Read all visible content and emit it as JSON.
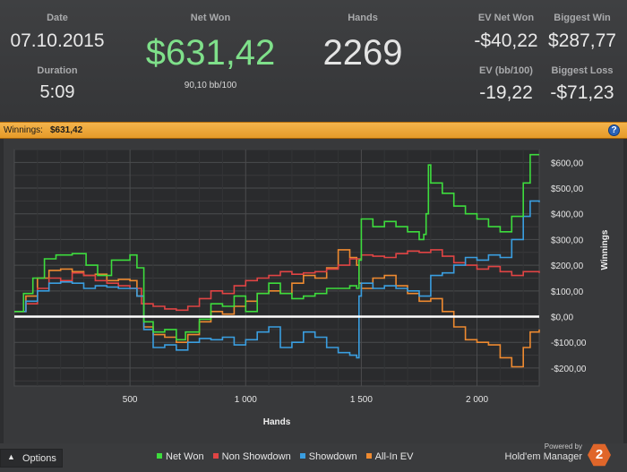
{
  "summary": {
    "date_label": "Date",
    "date_value": "07.10.2015",
    "duration_label": "Duration",
    "duration_value": "5:09",
    "net_won_label": "Net Won",
    "net_won_value": "$631,42",
    "net_won_sub": "90,10 bb/100",
    "hands_label": "Hands",
    "hands_value": "2269",
    "ev_net_won_label": "EV Net Won",
    "ev_net_won_value": "-$40,22",
    "ev_bb100_label": "EV (bb/100)",
    "ev_bb100_value": "-19,22",
    "biggest_win_label": "Biggest Win",
    "biggest_win_value": "$287,77",
    "biggest_loss_label": "Biggest Loss",
    "biggest_loss_value": "-$71,23"
  },
  "title_bar": {
    "label": "Winnings:",
    "amount": "$631,42",
    "help_icon": "question-icon"
  },
  "footer": {
    "options_label": "Options",
    "options_icon": "chevron-up-icon",
    "powered_by": "Powered by",
    "brand_name": "Hold'em Manager",
    "brand_logo_text": "2"
  },
  "chart_data": {
    "type": "line",
    "xlabel": "Hands",
    "ylabel": "Winnings",
    "xlim": [
      0,
      2269
    ],
    "ylim": [
      -270,
      650
    ],
    "x_ticks": [
      500,
      1000,
      1500,
      2000
    ],
    "x_tick_labels": [
      "500",
      "1 000",
      "1 500",
      "2 000"
    ],
    "y_ticks": [
      600,
      500,
      400,
      300,
      200,
      100,
      0,
      -100,
      -200
    ],
    "y_tick_labels": [
      "$600,00",
      "$500,00",
      "$400,00",
      "$300,00",
      "$200,00",
      "$100,00",
      "$0,00",
      "-$100,00",
      "-$200,00"
    ],
    "grid": true,
    "legend_position": "bottom",
    "series": [
      {
        "name": "Net Won",
        "color": "#3ddc3d",
        "points": [
          [
            0,
            20
          ],
          [
            40,
            90
          ],
          [
            80,
            150
          ],
          [
            130,
            225
          ],
          [
            180,
            240
          ],
          [
            250,
            245
          ],
          [
            310,
            200
          ],
          [
            360,
            160
          ],
          [
            420,
            220
          ],
          [
            500,
            240
          ],
          [
            530,
            190
          ],
          [
            560,
            -20
          ],
          [
            600,
            -60
          ],
          [
            650,
            -50
          ],
          [
            700,
            -90
          ],
          [
            740,
            -60
          ],
          [
            800,
            -10
          ],
          [
            850,
            50
          ],
          [
            900,
            40
          ],
          [
            950,
            80
          ],
          [
            1000,
            20
          ],
          [
            1050,
            90
          ],
          [
            1100,
            130
          ],
          [
            1150,
            90
          ],
          [
            1200,
            70
          ],
          [
            1250,
            80
          ],
          [
            1300,
            90
          ],
          [
            1350,
            110
          ],
          [
            1400,
            110
          ],
          [
            1450,
            120
          ],
          [
            1480,
            110
          ],
          [
            1490,
            220
          ],
          [
            1500,
            380
          ],
          [
            1550,
            350
          ],
          [
            1600,
            370
          ],
          [
            1650,
            350
          ],
          [
            1700,
            330
          ],
          [
            1750,
            300
          ],
          [
            1770,
            320
          ],
          [
            1780,
            400
          ],
          [
            1790,
            590
          ],
          [
            1800,
            520
          ],
          [
            1850,
            480
          ],
          [
            1900,
            430
          ],
          [
            1950,
            400
          ],
          [
            2000,
            380
          ],
          [
            2050,
            350
          ],
          [
            2100,
            330
          ],
          [
            2150,
            390
          ],
          [
            2200,
            520
          ],
          [
            2230,
            630
          ],
          [
            2269,
            630
          ]
        ]
      },
      {
        "name": "Non Showdown",
        "color": "#e04444",
        "points": [
          [
            0,
            20
          ],
          [
            50,
            50
          ],
          [
            100,
            110
          ],
          [
            150,
            150
          ],
          [
            200,
            140
          ],
          [
            250,
            170
          ],
          [
            300,
            160
          ],
          [
            350,
            140
          ],
          [
            400,
            130
          ],
          [
            450,
            120
          ],
          [
            500,
            110
          ],
          [
            550,
            50
          ],
          [
            600,
            40
          ],
          [
            650,
            30
          ],
          [
            700,
            25
          ],
          [
            750,
            40
          ],
          [
            800,
            70
          ],
          [
            850,
            100
          ],
          [
            900,
            90
          ],
          [
            950,
            120
          ],
          [
            1000,
            140
          ],
          [
            1050,
            150
          ],
          [
            1100,
            160
          ],
          [
            1150,
            175
          ],
          [
            1200,
            165
          ],
          [
            1250,
            170
          ],
          [
            1300,
            175
          ],
          [
            1350,
            185
          ],
          [
            1400,
            200
          ],
          [
            1450,
            225
          ],
          [
            1500,
            240
          ],
          [
            1550,
            235
          ],
          [
            1600,
            230
          ],
          [
            1650,
            245
          ],
          [
            1700,
            255
          ],
          [
            1750,
            250
          ],
          [
            1800,
            260
          ],
          [
            1850,
            235
          ],
          [
            1900,
            210
          ],
          [
            1950,
            200
          ],
          [
            2000,
            185
          ],
          [
            2050,
            195
          ],
          [
            2100,
            175
          ],
          [
            2150,
            160
          ],
          [
            2200,
            175
          ],
          [
            2269,
            170
          ]
        ]
      },
      {
        "name": "Showdown",
        "color": "#3a9ee0",
        "points": [
          [
            0,
            20
          ],
          [
            50,
            60
          ],
          [
            100,
            100
          ],
          [
            150,
            130
          ],
          [
            200,
            135
          ],
          [
            250,
            130
          ],
          [
            300,
            110
          ],
          [
            350,
            120
          ],
          [
            400,
            115
          ],
          [
            450,
            110
          ],
          [
            500,
            110
          ],
          [
            530,
            80
          ],
          [
            560,
            -50
          ],
          [
            600,
            -120
          ],
          [
            650,
            -110
          ],
          [
            700,
            -130
          ],
          [
            750,
            -100
          ],
          [
            800,
            -85
          ],
          [
            850,
            -90
          ],
          [
            900,
            -80
          ],
          [
            950,
            -110
          ],
          [
            1000,
            -90
          ],
          [
            1050,
            -60
          ],
          [
            1100,
            -40
          ],
          [
            1150,
            -120
          ],
          [
            1200,
            -100
          ],
          [
            1250,
            -60
          ],
          [
            1300,
            -80
          ],
          [
            1350,
            -120
          ],
          [
            1400,
            -140
          ],
          [
            1450,
            -150
          ],
          [
            1480,
            -160
          ],
          [
            1490,
            80
          ],
          [
            1500,
            130
          ],
          [
            1550,
            110
          ],
          [
            1600,
            120
          ],
          [
            1650,
            110
          ],
          [
            1700,
            100
          ],
          [
            1750,
            80
          ],
          [
            1800,
            160
          ],
          [
            1850,
            170
          ],
          [
            1900,
            200
          ],
          [
            1950,
            230
          ],
          [
            2000,
            220
          ],
          [
            2050,
            240
          ],
          [
            2100,
            230
          ],
          [
            2150,
            300
          ],
          [
            2200,
            390
          ],
          [
            2230,
            450
          ],
          [
            2269,
            445
          ]
        ]
      },
      {
        "name": "All-In EV",
        "color": "#ee8a30",
        "points": [
          [
            0,
            20
          ],
          [
            50,
            80
          ],
          [
            100,
            150
          ],
          [
            150,
            180
          ],
          [
            200,
            185
          ],
          [
            250,
            175
          ],
          [
            300,
            160
          ],
          [
            350,
            165
          ],
          [
            400,
            140
          ],
          [
            450,
            145
          ],
          [
            500,
            140
          ],
          [
            530,
            80
          ],
          [
            560,
            -40
          ],
          [
            600,
            -70
          ],
          [
            650,
            -80
          ],
          [
            700,
            -100
          ],
          [
            750,
            -70
          ],
          [
            800,
            -20
          ],
          [
            850,
            20
          ],
          [
            900,
            10
          ],
          [
            950,
            40
          ],
          [
            1000,
            60
          ],
          [
            1050,
            90
          ],
          [
            1100,
            100
          ],
          [
            1150,
            90
          ],
          [
            1200,
            130
          ],
          [
            1250,
            160
          ],
          [
            1300,
            150
          ],
          [
            1350,
            190
          ],
          [
            1400,
            260
          ],
          [
            1450,
            230
          ],
          [
            1480,
            200
          ],
          [
            1490,
            130
          ],
          [
            1500,
            110
          ],
          [
            1550,
            150
          ],
          [
            1600,
            160
          ],
          [
            1650,
            120
          ],
          [
            1700,
            90
          ],
          [
            1750,
            60
          ],
          [
            1800,
            70
          ],
          [
            1850,
            20
          ],
          [
            1900,
            -40
          ],
          [
            1950,
            -90
          ],
          [
            2000,
            -100
          ],
          [
            2050,
            -110
          ],
          [
            2100,
            -160
          ],
          [
            2150,
            -195
          ],
          [
            2200,
            -120
          ],
          [
            2230,
            -60
          ],
          [
            2269,
            -50
          ]
        ]
      }
    ]
  }
}
